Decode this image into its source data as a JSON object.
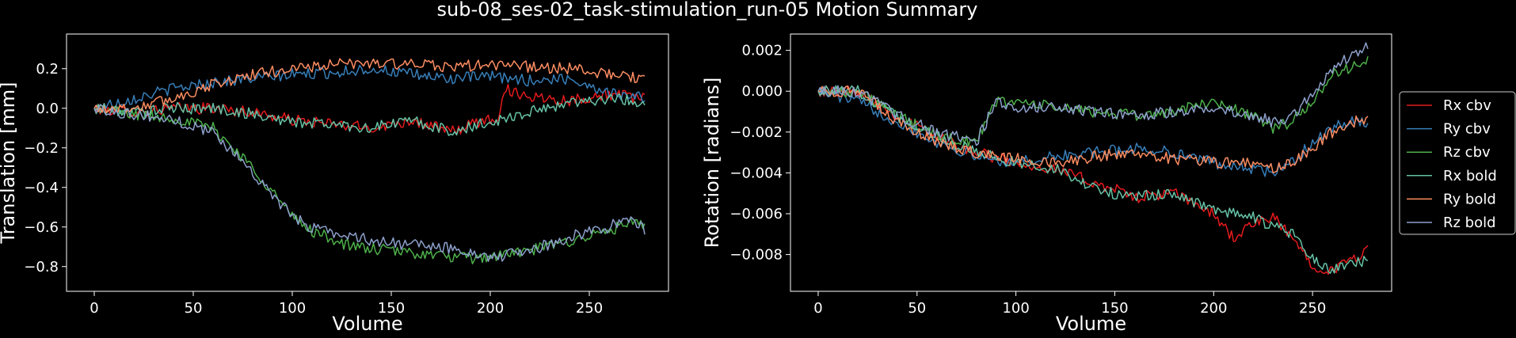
{
  "figure": {
    "title": "sub-08_ses-02_task-stimulation_run-05 Motion Summary",
    "background": "#000000",
    "foreground": "#ffffff"
  },
  "chart_data": [
    {
      "type": "line",
      "ylabel": "Translation [mm]",
      "xlabel": "Volume",
      "xlim": [
        -14,
        290
      ],
      "ylim": [
        -0.925,
        0.375
      ],
      "xticks": [
        0,
        50,
        100,
        150,
        200,
        250
      ],
      "yticks": [
        -0.8,
        -0.6,
        -0.4,
        -0.2,
        0.0,
        0.2
      ],
      "ytick_labels": [
        "−0.8",
        "−0.6",
        "−0.4",
        "−0.2",
        "0.0",
        "0.2"
      ],
      "grid": false,
      "series": [
        {
          "color": "#e41a1c",
          "x": [
            0,
            20,
            40,
            60,
            80,
            100,
            120,
            140,
            160,
            180,
            200,
            205,
            207,
            220,
            240,
            260,
            278
          ],
          "y": [
            0.0,
            -0.02,
            0.0,
            0.0,
            -0.02,
            -0.06,
            -0.08,
            -0.1,
            -0.06,
            -0.12,
            -0.05,
            -0.04,
            0.1,
            0.06,
            0.04,
            0.07,
            0.05
          ]
        },
        {
          "color": "#377eb8",
          "x": [
            0,
            20,
            40,
            60,
            80,
            100,
            120,
            140,
            160,
            180,
            200,
            220,
            240,
            260,
            278
          ],
          "y": [
            0.0,
            0.05,
            0.1,
            0.13,
            0.15,
            0.17,
            0.18,
            0.2,
            0.17,
            0.15,
            0.16,
            0.14,
            0.15,
            0.08,
            0.05
          ]
        },
        {
          "color": "#4daf4a",
          "x": [
            0,
            20,
            40,
            60,
            70,
            80,
            90,
            100,
            110,
            130,
            150,
            170,
            190,
            200,
            220,
            240,
            260,
            270,
            278
          ],
          "y": [
            0.0,
            -0.03,
            -0.05,
            -0.1,
            -0.2,
            -0.3,
            -0.42,
            -0.55,
            -0.62,
            -0.7,
            -0.72,
            -0.74,
            -0.76,
            -0.75,
            -0.72,
            -0.67,
            -0.62,
            -0.58,
            -0.6
          ]
        },
        {
          "color": "#66c2a5",
          "x": [
            0,
            20,
            40,
            60,
            80,
            100,
            120,
            140,
            160,
            180,
            200,
            220,
            240,
            260,
            278
          ],
          "y": [
            0.0,
            -0.02,
            0.0,
            0.0,
            -0.03,
            -0.07,
            -0.08,
            -0.1,
            -0.06,
            -0.12,
            -0.07,
            -0.02,
            0.03,
            0.05,
            0.03
          ]
        },
        {
          "color": "#fc8d62",
          "x": [
            0,
            20,
            40,
            60,
            80,
            100,
            120,
            140,
            160,
            180,
            200,
            220,
            240,
            260,
            278
          ],
          "y": [
            0.0,
            0.0,
            0.05,
            0.12,
            0.17,
            0.2,
            0.22,
            0.23,
            0.22,
            0.21,
            0.22,
            0.21,
            0.2,
            0.17,
            0.15
          ]
        },
        {
          "color": "#8da0cb",
          "x": [
            0,
            20,
            40,
            60,
            70,
            80,
            90,
            100,
            110,
            130,
            150,
            170,
            190,
            200,
            220,
            240,
            260,
            270,
            278
          ],
          "y": [
            0.0,
            -0.03,
            -0.06,
            -0.12,
            -0.22,
            -0.32,
            -0.44,
            -0.55,
            -0.6,
            -0.65,
            -0.68,
            -0.7,
            -0.72,
            -0.76,
            -0.72,
            -0.65,
            -0.6,
            -0.55,
            -0.62
          ]
        }
      ]
    },
    {
      "type": "line",
      "ylabel": "Rotation [radians]",
      "xlabel": "Volume",
      "xlim": [
        -14,
        290
      ],
      "ylim": [
        -0.0098,
        0.0028
      ],
      "xticks": [
        0,
        50,
        100,
        150,
        200,
        250
      ],
      "yticks": [
        -0.008,
        -0.006,
        -0.004,
        -0.002,
        0.0,
        0.002
      ],
      "ytick_labels": [
        "−0.008",
        "−0.006",
        "−0.004",
        "−0.002",
        "0.000",
        "0.002"
      ],
      "grid": false,
      "legend": {
        "position": "right-outside",
        "entries": [
          "Rx cbv",
          "Ry cbv",
          "Rz cbv",
          "Rx bold",
          "Ry bold",
          "Rz bold"
        ]
      },
      "series": [
        {
          "name": "Rx cbv",
          "color": "#e41a1c",
          "x": [
            0,
            20,
            40,
            60,
            80,
            100,
            120,
            140,
            150,
            160,
            180,
            190,
            200,
            210,
            220,
            230,
            240,
            250,
            260,
            270,
            278
          ],
          "y": [
            0.0,
            0.0,
            -0.0012,
            -0.0022,
            -0.003,
            -0.0035,
            -0.0038,
            -0.0045,
            -0.0048,
            -0.0052,
            -0.005,
            -0.0055,
            -0.006,
            -0.0072,
            -0.0065,
            -0.0062,
            -0.0072,
            -0.0085,
            -0.0088,
            -0.0082,
            -0.0078
          ]
        },
        {
          "name": "Ry cbv",
          "color": "#377eb8",
          "x": [
            0,
            20,
            40,
            60,
            80,
            100,
            120,
            140,
            160,
            180,
            200,
            220,
            230,
            240,
            250,
            260,
            270,
            278
          ],
          "y": [
            0.0,
            -0.0005,
            -0.0015,
            -0.0025,
            -0.0032,
            -0.0035,
            -0.0032,
            -0.003,
            -0.0028,
            -0.003,
            -0.0035,
            -0.0038,
            -0.004,
            -0.0035,
            -0.0025,
            -0.0018,
            -0.0015,
            -0.0015
          ]
        },
        {
          "name": "Rz cbv",
          "color": "#4daf4a",
          "x": [
            0,
            20,
            40,
            60,
            80,
            90,
            100,
            120,
            140,
            160,
            180,
            200,
            220,
            230,
            240,
            250,
            260,
            270,
            278
          ],
          "y": [
            0.0,
            0.0,
            -0.0012,
            -0.0022,
            -0.0025,
            -0.0005,
            -0.0005,
            -0.0008,
            -0.001,
            -0.0012,
            -0.001,
            -0.0005,
            -0.0012,
            -0.0018,
            -0.0015,
            -0.0005,
            0.0008,
            0.0012,
            0.0015
          ]
        },
        {
          "name": "Rx bold",
          "color": "#66c2a5",
          "x": [
            0,
            20,
            40,
            60,
            80,
            100,
            120,
            140,
            160,
            180,
            200,
            220,
            240,
            250,
            260,
            270,
            278
          ],
          "y": [
            0.0,
            0.0,
            -0.0012,
            -0.0022,
            -0.003,
            -0.0035,
            -0.0038,
            -0.0048,
            -0.0052,
            -0.005,
            -0.0058,
            -0.0062,
            -0.007,
            -0.0082,
            -0.0088,
            -0.0085,
            -0.0082
          ]
        },
        {
          "name": "Ry bold",
          "color": "#fc8d62",
          "x": [
            0,
            20,
            40,
            60,
            80,
            100,
            120,
            140,
            160,
            180,
            200,
            220,
            230,
            240,
            250,
            260,
            270,
            278
          ],
          "y": [
            0.0,
            0.0,
            -0.0015,
            -0.0025,
            -0.003,
            -0.0033,
            -0.0035,
            -0.0032,
            -0.003,
            -0.0033,
            -0.0035,
            -0.0035,
            -0.0038,
            -0.0035,
            -0.0028,
            -0.002,
            -0.0015,
            -0.0014
          ]
        },
        {
          "name": "Rz bold",
          "color": "#8da0cb",
          "x": [
            0,
            20,
            40,
            60,
            80,
            90,
            100,
            120,
            140,
            160,
            180,
            200,
            220,
            230,
            240,
            250,
            260,
            270,
            278
          ],
          "y": [
            0.0,
            0.0,
            -0.0012,
            -0.002,
            -0.0025,
            -0.0005,
            -0.0008,
            -0.0008,
            -0.001,
            -0.0012,
            -0.001,
            -0.0008,
            -0.0012,
            -0.0015,
            -0.0012,
            0.0,
            0.001,
            0.0018,
            0.0022
          ]
        }
      ]
    }
  ]
}
